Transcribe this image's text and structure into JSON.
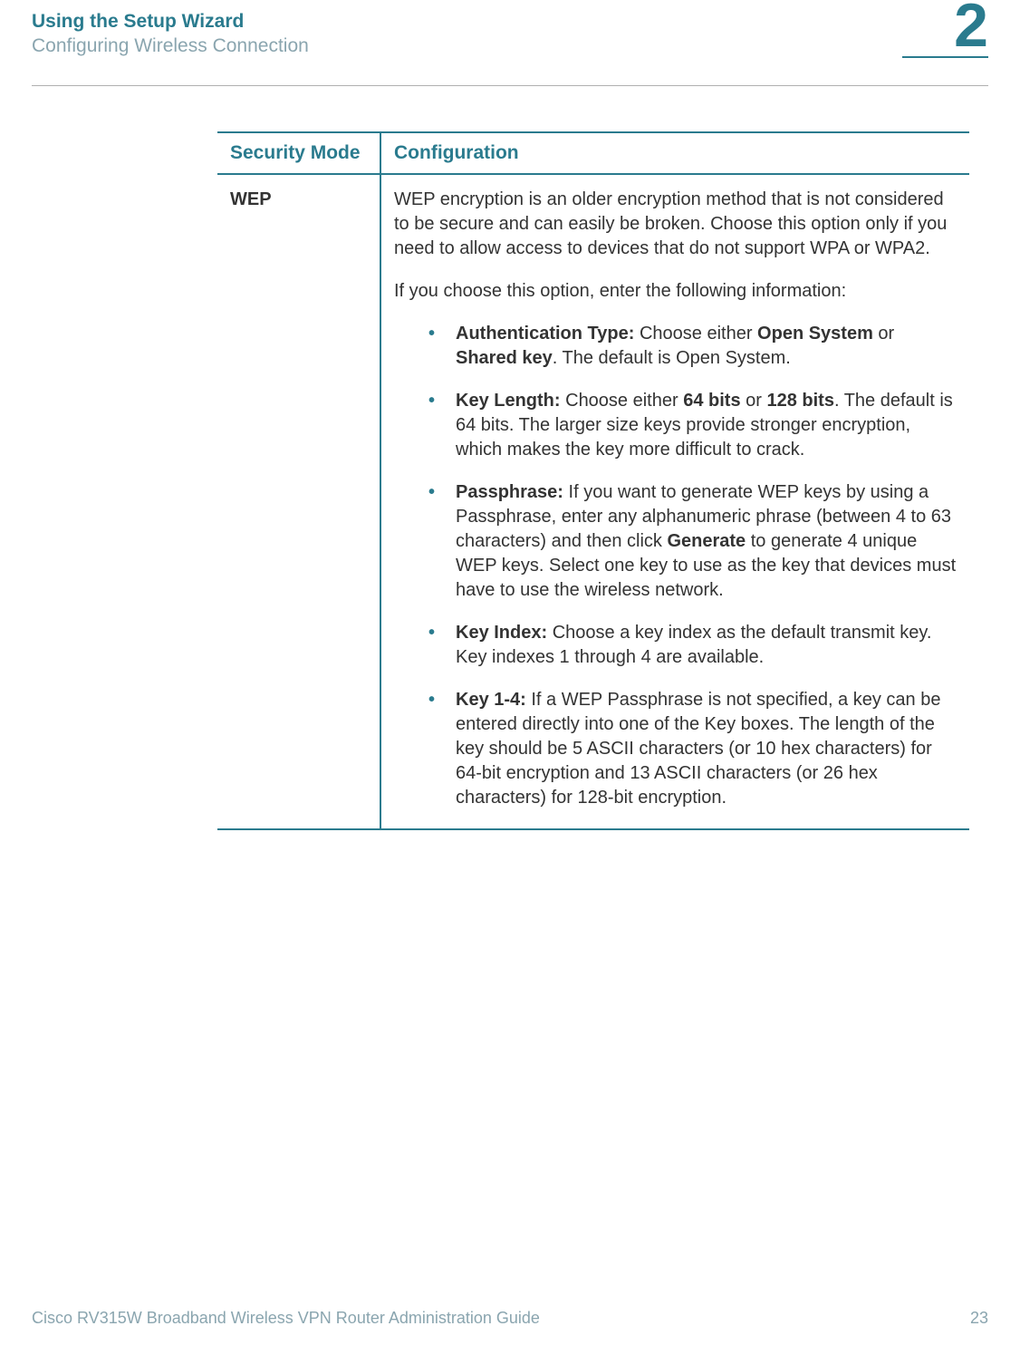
{
  "header": {
    "chapter_title": "Using the Setup Wizard",
    "section_title": "Configuring Wireless Connection",
    "chapter_number": "2"
  },
  "table": {
    "headers": {
      "col1": "Security Mode",
      "col2": "Configuration"
    },
    "row": {
      "mode": "WEP",
      "intro1": "WEP encryption is an older encryption method that is not considered to be secure and can easily be broken. Choose this option only if you need to allow access to devices that do not support WPA or WPA2.",
      "intro2": "If you choose this option, enter the following information:",
      "bullets": {
        "auth_type_label": "Authentication Type:",
        "auth_type_text1": " Choose either ",
        "auth_type_bold1": "Open System",
        "auth_type_text2": " or ",
        "auth_type_bold2": "Shared key",
        "auth_type_text3": ". The default is Open System.",
        "key_length_label": "Key Length:",
        "key_length_text1": " Choose either ",
        "key_length_bold1": "64 bits",
        "key_length_text2": " or ",
        "key_length_bold2": "128 bits",
        "key_length_text3": ". The default is 64 bits. The larger size keys provide stronger encryption, which makes the key more difficult to crack.",
        "passphrase_label": "Passphrase:",
        "passphrase_text1": " If you want to generate WEP keys by using a Passphrase, enter any alphanumeric phrase (between 4 to 63 characters) and then click ",
        "passphrase_bold1": "Generate",
        "passphrase_text2": " to generate 4 unique WEP keys. Select one key to use as the key that devices must have to use the wireless network.",
        "key_index_label": "Key Index:",
        "key_index_text": " Choose a key index as the default transmit key. Key indexes 1 through 4 are available.",
        "key14_label": "Key 1-4:",
        "key14_text": " If a WEP Passphrase is not specified, a key can be entered directly into one of the Key boxes. The length of the key should be 5 ASCII characters (or 10 hex characters) for 64-bit encryption and 13 ASCII characters (or 26 hex characters) for 128-bit encryption."
      }
    }
  },
  "footer": {
    "guide": "Cisco RV315W Broadband Wireless VPN Router Administration Guide",
    "page": "23"
  },
  "colors": {
    "accent": "#2a7b8e",
    "muted": "#8aa5af",
    "text": "#333333",
    "background": "#ffffff"
  }
}
